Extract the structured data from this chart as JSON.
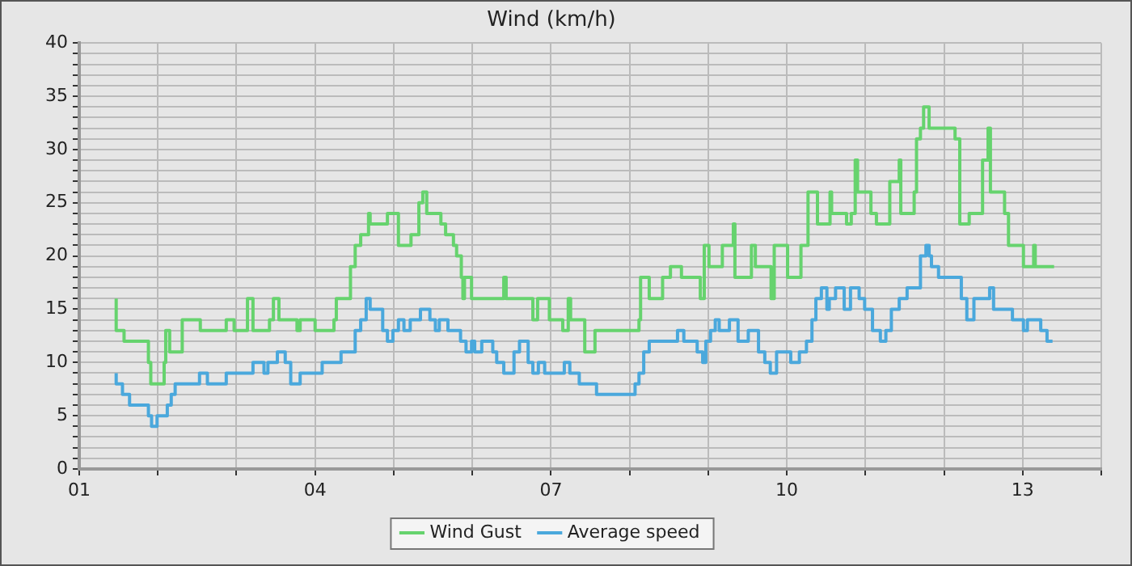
{
  "chart_data": {
    "type": "step",
    "title": "Wind (km/h)",
    "xlim": [
      1,
      14
    ],
    "xticks": [
      {
        "value": 1,
        "label": "01"
      },
      {
        "value": 2,
        "label": null
      },
      {
        "value": 3,
        "label": null
      },
      {
        "value": 4,
        "label": "04"
      },
      {
        "value": 5,
        "label": null
      },
      {
        "value": 6,
        "label": null
      },
      {
        "value": 7,
        "label": "07"
      },
      {
        "value": 8,
        "label": null
      },
      {
        "value": 9,
        "label": null
      },
      {
        "value": 10,
        "label": "10"
      },
      {
        "value": 11,
        "label": null
      },
      {
        "value": 12,
        "label": null
      },
      {
        "value": 13,
        "label": "13"
      },
      {
        "value": 14,
        "label": null
      }
    ],
    "ylim": [
      0,
      40
    ],
    "yticks": [
      0,
      {
        "value": 1,
        "label": null
      },
      {
        "value": 2,
        "label": null
      },
      {
        "value": 3,
        "label": null
      },
      {
        "value": 4,
        "label": null
      },
      5,
      {
        "value": 6,
        "label": null
      },
      {
        "value": 7,
        "label": null
      },
      {
        "value": 8,
        "label": null
      },
      {
        "value": 9,
        "label": null
      },
      10,
      {
        "value": 11,
        "label": null
      },
      {
        "value": 12,
        "label": null
      },
      {
        "value": 13,
        "label": null
      },
      {
        "value": 14,
        "label": null
      },
      15,
      {
        "value": 16,
        "label": null
      },
      {
        "value": 17,
        "label": null
      },
      {
        "value": 18,
        "label": null
      },
      {
        "value": 19,
        "label": null
      },
      20,
      {
        "value": 21,
        "label": null
      },
      {
        "value": 22,
        "label": null
      },
      {
        "value": 23,
        "label": null
      },
      {
        "value": 24,
        "label": null
      },
      25,
      {
        "value": 26,
        "label": null
      },
      {
        "value": 27,
        "label": null
      },
      {
        "value": 28,
        "label": null
      },
      {
        "value": 29,
        "label": null
      },
      30,
      {
        "value": 31,
        "label": null
      },
      {
        "value": 32,
        "label": null
      },
      {
        "value": 33,
        "label": null
      },
      {
        "value": 34,
        "label": null
      },
      35,
      {
        "value": 36,
        "label": null
      },
      {
        "value": 37,
        "label": null
      },
      {
        "value": 38,
        "label": null
      },
      {
        "value": 39,
        "label": null
      },
      40
    ],
    "grid": true,
    "legend": "bottom",
    "line_style": "solid",
    "series": [
      {
        "name": "Wind Gust",
        "color": "#66d36e",
        "x": [
          1.47,
          1.57,
          1.88,
          1.91,
          2.08,
          2.1,
          2.15,
          2.31,
          2.54,
          2.87,
          2.97,
          3.14,
          3.21,
          3.42,
          3.47,
          3.54,
          3.77,
          3.81,
          4.0,
          4.24,
          4.27,
          4.45,
          4.51,
          4.58,
          4.68,
          4.7,
          4.92,
          5.06,
          5.22,
          5.32,
          5.37,
          5.42,
          5.6,
          5.66,
          5.76,
          5.8,
          5.86,
          5.88,
          5.9,
          5.99,
          6.4,
          6.43,
          6.77,
          6.83,
          6.98,
          7.15,
          7.22,
          7.25,
          7.43,
          7.56,
          8.12,
          8.14,
          8.25,
          8.42,
          8.52,
          8.66,
          8.9,
          8.95,
          9.01,
          9.18,
          9.32,
          9.34,
          9.55,
          9.6,
          9.8,
          9.84,
          10.01,
          10.18,
          10.27,
          10.39,
          10.55,
          10.57,
          10.76,
          10.82,
          10.87,
          10.9,
          11.07,
          11.14,
          11.31,
          11.43,
          11.45,
          11.62,
          11.65,
          11.7,
          11.74,
          11.81,
          12.14,
          12.2,
          12.32,
          12.49,
          12.56,
          12.59,
          12.77,
          12.82,
          13.01,
          13.14,
          13.16,
          13.33,
          13.4
        ],
        "values": [
          16,
          13,
          12,
          10,
          8,
          10,
          13,
          11,
          14,
          13,
          14,
          13,
          16,
          13,
          14,
          16,
          14,
          13,
          14,
          13,
          14,
          16,
          19,
          21,
          22,
          24,
          23,
          24,
          21,
          22,
          25,
          26,
          24,
          23,
          22,
          21,
          20,
          18,
          16,
          18,
          16,
          18,
          16,
          14,
          16,
          14,
          13,
          16,
          14,
          11,
          13,
          14,
          18,
          16,
          18,
          19,
          18,
          16,
          21,
          19,
          21,
          23,
          18,
          21,
          19,
          16,
          21,
          18,
          21,
          26,
          23,
          26,
          24,
          23,
          24,
          29,
          26,
          24,
          23,
          27,
          29,
          24,
          26,
          31,
          32,
          34,
          32,
          31,
          23,
          24,
          29,
          32,
          26,
          24,
          21,
          19,
          21,
          19,
          19
        ]
      },
      {
        "name": "Average speed",
        "color": "#4aa8dc",
        "x": [
          1.47,
          1.55,
          1.64,
          1.88,
          1.92,
          1.99,
          2.12,
          2.17,
          2.22,
          2.53,
          2.63,
          2.87,
          3.21,
          3.35,
          3.4,
          3.52,
          3.62,
          3.69,
          3.81,
          4.09,
          4.33,
          4.51,
          4.58,
          4.65,
          4.7,
          4.86,
          4.92,
          4.99,
          5.06,
          5.13,
          5.21,
          5.34,
          5.46,
          5.53,
          5.58,
          5.69,
          5.85,
          5.92,
          5.99,
          6.03,
          6.12,
          6.26,
          6.31,
          6.4,
          6.53,
          6.6,
          6.71,
          6.77,
          6.84,
          6.92,
          7.17,
          7.24,
          7.36,
          7.58,
          8.07,
          8.12,
          8.18,
          8.25,
          8.61,
          8.69,
          8.86,
          8.93,
          8.97,
          9.03,
          9.09,
          9.14,
          9.27,
          9.38,
          9.51,
          9.64,
          9.72,
          9.79,
          9.87,
          10.05,
          10.16,
          10.25,
          10.32,
          10.37,
          10.44,
          10.51,
          10.54,
          10.62,
          10.73,
          10.81,
          10.92,
          10.99,
          11.09,
          11.19,
          11.26,
          11.33,
          11.43,
          11.53,
          11.7,
          11.77,
          11.81,
          11.84,
          11.93,
          12.22,
          12.29,
          12.38,
          12.58,
          12.63,
          12.87,
          13.01,
          13.06,
          13.23,
          13.31,
          13.38
        ],
        "values": [
          9,
          8,
          7,
          6,
          5,
          4,
          5,
          6,
          7,
          8,
          9,
          8,
          9,
          10,
          9,
          10,
          11,
          10,
          8,
          9,
          10,
          11,
          13,
          14,
          16,
          15,
          13,
          12,
          13,
          14,
          13,
          14,
          15,
          14,
          13,
          14,
          13,
          12,
          11,
          12,
          11,
          12,
          11,
          10,
          9,
          11,
          12,
          10,
          9,
          10,
          9,
          10,
          9,
          8,
          7,
          8,
          9,
          11,
          12,
          13,
          12,
          11,
          10,
          12,
          13,
          14,
          13,
          14,
          12,
          13,
          11,
          10,
          9,
          11,
          10,
          11,
          12,
          14,
          16,
          17,
          15,
          16,
          17,
          15,
          17,
          16,
          15,
          13,
          12,
          13,
          15,
          16,
          17,
          20,
          21,
          20,
          19,
          18,
          16,
          14,
          16,
          17,
          15,
          14,
          13,
          14,
          13,
          12
        ]
      }
    ]
  }
}
